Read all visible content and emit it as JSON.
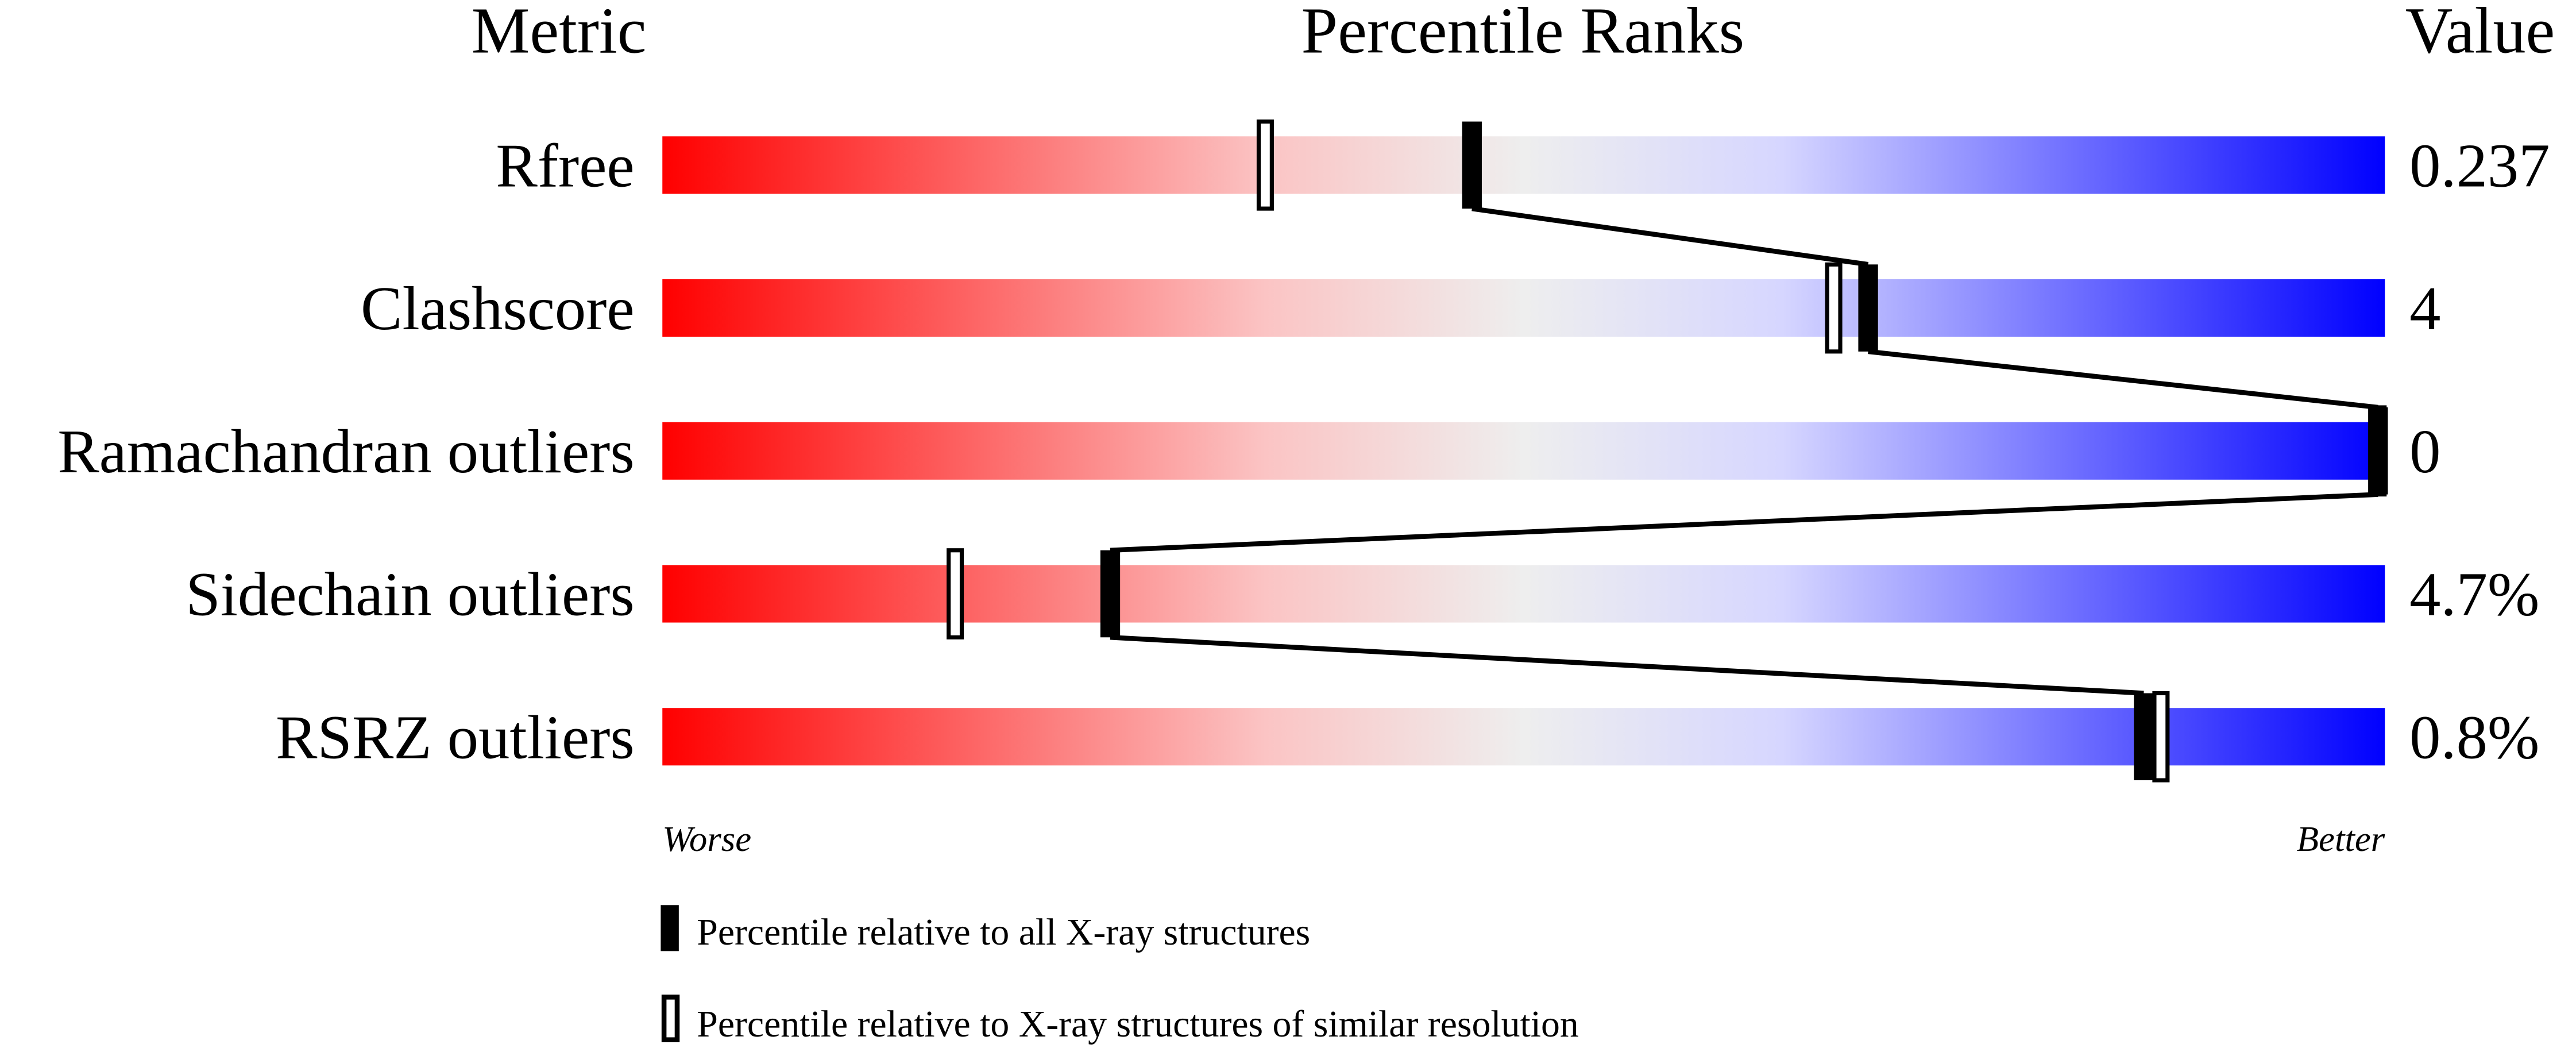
{
  "chart_data": {
    "type": "percentile-slider",
    "headers": {
      "metric": "Metric",
      "ranks": "Percentile Ranks",
      "value": "Value"
    },
    "xlim": [
      0,
      100
    ],
    "axis_labels": {
      "left": "Worse",
      "right": "Better"
    },
    "gradient_colors": [
      "#ff0000",
      "#fbc4c4",
      "#eeeeee",
      "#d6d6ff",
      "#0000ff"
    ],
    "metrics": [
      {
        "name": "Rfree",
        "value": "0.237",
        "percentile_all": 47,
        "percentile_similar": 35
      },
      {
        "name": "Clashscore",
        "value": "4",
        "percentile_all": 70,
        "percentile_similar": 68
      },
      {
        "name": "Ramachandran outliers",
        "value": "0",
        "percentile_all": 100,
        "percentile_similar": 100
      },
      {
        "name": "Sidechain outliers",
        "value": "4.7%",
        "percentile_all": 26,
        "percentile_similar": 17
      },
      {
        "name": "RSRZ outliers",
        "value": "0.8%",
        "percentile_all": 86,
        "percentile_similar": 87
      }
    ],
    "legend": {
      "all": "Percentile relative to all X-ray structures",
      "similar": "Percentile relative to X-ray structures of similar resolution"
    }
  }
}
